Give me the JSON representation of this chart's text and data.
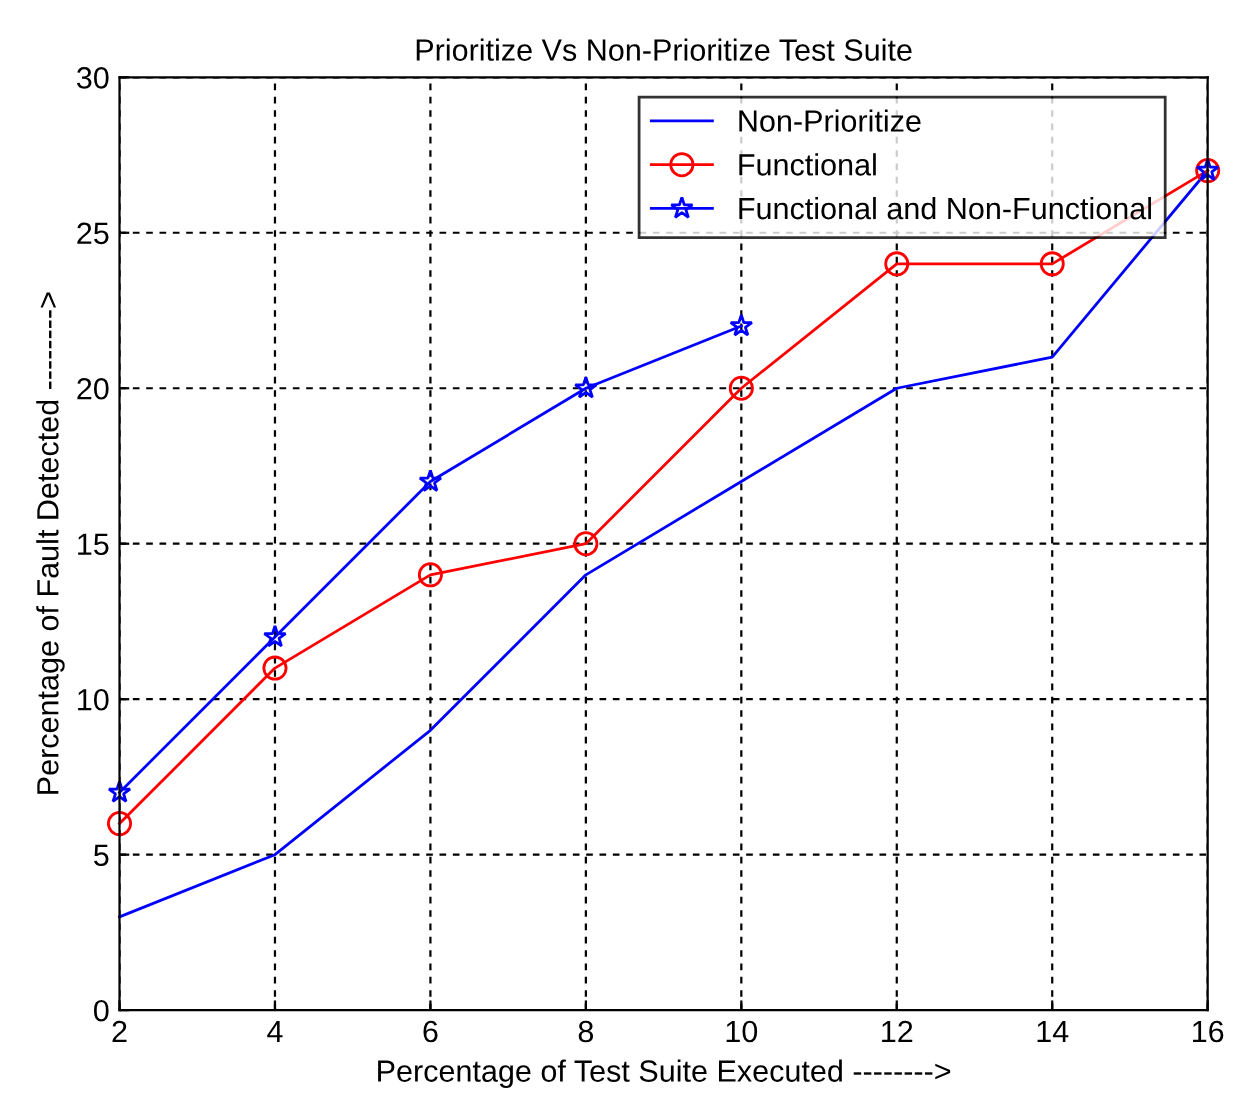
{
  "chart_data": {
    "type": "line",
    "title": "Prioritize Vs Non-Prioritize Test Suite",
    "xlabel": "Percentage of Test Suite Executed -------->",
    "ylabel": "Percentage of Fault Detected -------->",
    "x": [
      2,
      4,
      6,
      8,
      10,
      12,
      14,
      16
    ],
    "series": [
      {
        "name": "Non-Prioritize",
        "color": "#0000ff",
        "marker": "none",
        "values": [
          3,
          5,
          9,
          14,
          17,
          20,
          21,
          27
        ]
      },
      {
        "name": "Functional",
        "color": "#ff0000",
        "marker": "circle",
        "values": [
          6,
          11,
          14,
          15,
          20,
          24,
          24,
          27
        ]
      },
      {
        "name": "Functional and Non-Functional",
        "color": "#0000ff",
        "marker": "star",
        "values": [
          7,
          12,
          17,
          20,
          22,
          null,
          null,
          27
        ]
      }
    ],
    "xlim": [
      2,
      16
    ],
    "ylim": [
      0,
      30
    ],
    "xticks": [
      2,
      4,
      6,
      8,
      10,
      12,
      14,
      16
    ],
    "yticks": [
      0,
      5,
      10,
      15,
      20,
      25,
      30
    ],
    "grid": true,
    "line_style": "solid",
    "legend": "top right"
  }
}
